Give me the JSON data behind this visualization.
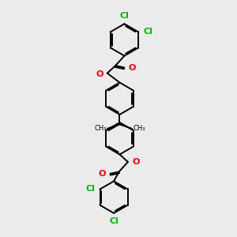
{
  "background_color": "#ebebeb",
  "bond_color": "#000000",
  "oxygen_color": "#ff0000",
  "chlorine_color": "#00bb00",
  "line_width": 1.4,
  "font_size_cl": 8,
  "font_size_o": 8,
  "figsize": [
    3.0,
    3.0
  ],
  "dpi": 100,
  "xlim": [
    0,
    10
  ],
  "ylim": [
    0,
    10
  ]
}
